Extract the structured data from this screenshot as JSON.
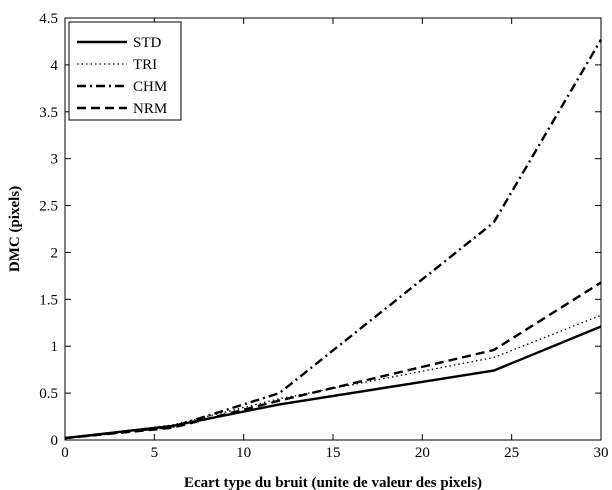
{
  "chart_data": {
    "type": "line",
    "xlabel": "Ecart type du bruit (unite de valeur des pixels)",
    "ylabel": "DMC (pixels)",
    "xlim": [
      0,
      30
    ],
    "ylim": [
      0,
      4.5
    ],
    "xticks": [
      0,
      5,
      10,
      15,
      20,
      25,
      30
    ],
    "yticks": [
      0,
      0.5,
      1,
      1.5,
      2,
      2.5,
      3,
      3.5,
      4,
      4.5
    ],
    "grid": false,
    "legend_position": "top-left",
    "series": [
      {
        "name": "STD",
        "style": "solid",
        "x": [
          0,
          6,
          12,
          24,
          30
        ],
        "y": [
          0.02,
          0.15,
          0.38,
          0.74,
          1.21
        ]
      },
      {
        "name": "TRI",
        "style": "dotted",
        "x": [
          0,
          6,
          12,
          24,
          30
        ],
        "y": [
          0.02,
          0.16,
          0.44,
          0.88,
          1.33
        ]
      },
      {
        "name": "CHM",
        "style": "dashdot",
        "x": [
          0,
          6,
          12,
          24,
          30
        ],
        "y": [
          0.02,
          0.14,
          0.5,
          2.32,
          4.27
        ]
      },
      {
        "name": "NRM",
        "style": "dashed",
        "x": [
          0,
          6,
          12,
          24,
          30
        ],
        "y": [
          0.02,
          0.13,
          0.42,
          0.96,
          1.68
        ]
      }
    ]
  }
}
